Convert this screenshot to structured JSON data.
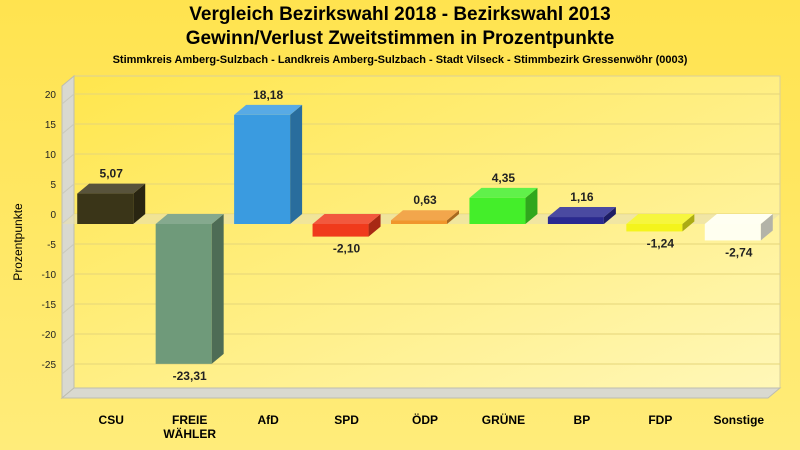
{
  "chart_data": {
    "type": "bar",
    "title": "Vergleich Bezirkswahl 2018 - Bezirkswahl 2013",
    "title2": "Gewinn/Verlust Zweitstimmen in Prozentpunkte",
    "subtitle": "Stimmkreis Amberg-Sulzbach - Landkreis Amberg-Sulzbach - Stadt Vilseck - Stimmbezirk Gressenwöhr (0003)",
    "ylabel": "Prozentpunkte",
    "ylim": [
      -29,
      23
    ],
    "yticks": [
      20,
      15,
      10,
      5,
      0,
      -5,
      -10,
      -15,
      -20,
      -25
    ],
    "grid": true,
    "categories": [
      "CSU",
      "FREIE\nWÄHLER",
      "AfD",
      "SPD",
      "ÖDP",
      "GRÜNE",
      "BP",
      "FDP",
      "Sonstige"
    ],
    "values": [
      5.07,
      -23.31,
      18.18,
      -2.1,
      0.63,
      4.35,
      1.16,
      -1.24,
      -2.74
    ],
    "value_labels": [
      "5,07",
      "-23,31",
      "18,18",
      "-2,10",
      "0,63",
      "4,35",
      "1,16",
      "-1,24",
      "-2,74"
    ],
    "colors": [
      "#3a3518",
      "#6f9a7a",
      "#3a9be0",
      "#f03a1c",
      "#f0962c",
      "#44ee2a",
      "#2a2a90",
      "#f4f41c",
      "#fffff0"
    ]
  }
}
